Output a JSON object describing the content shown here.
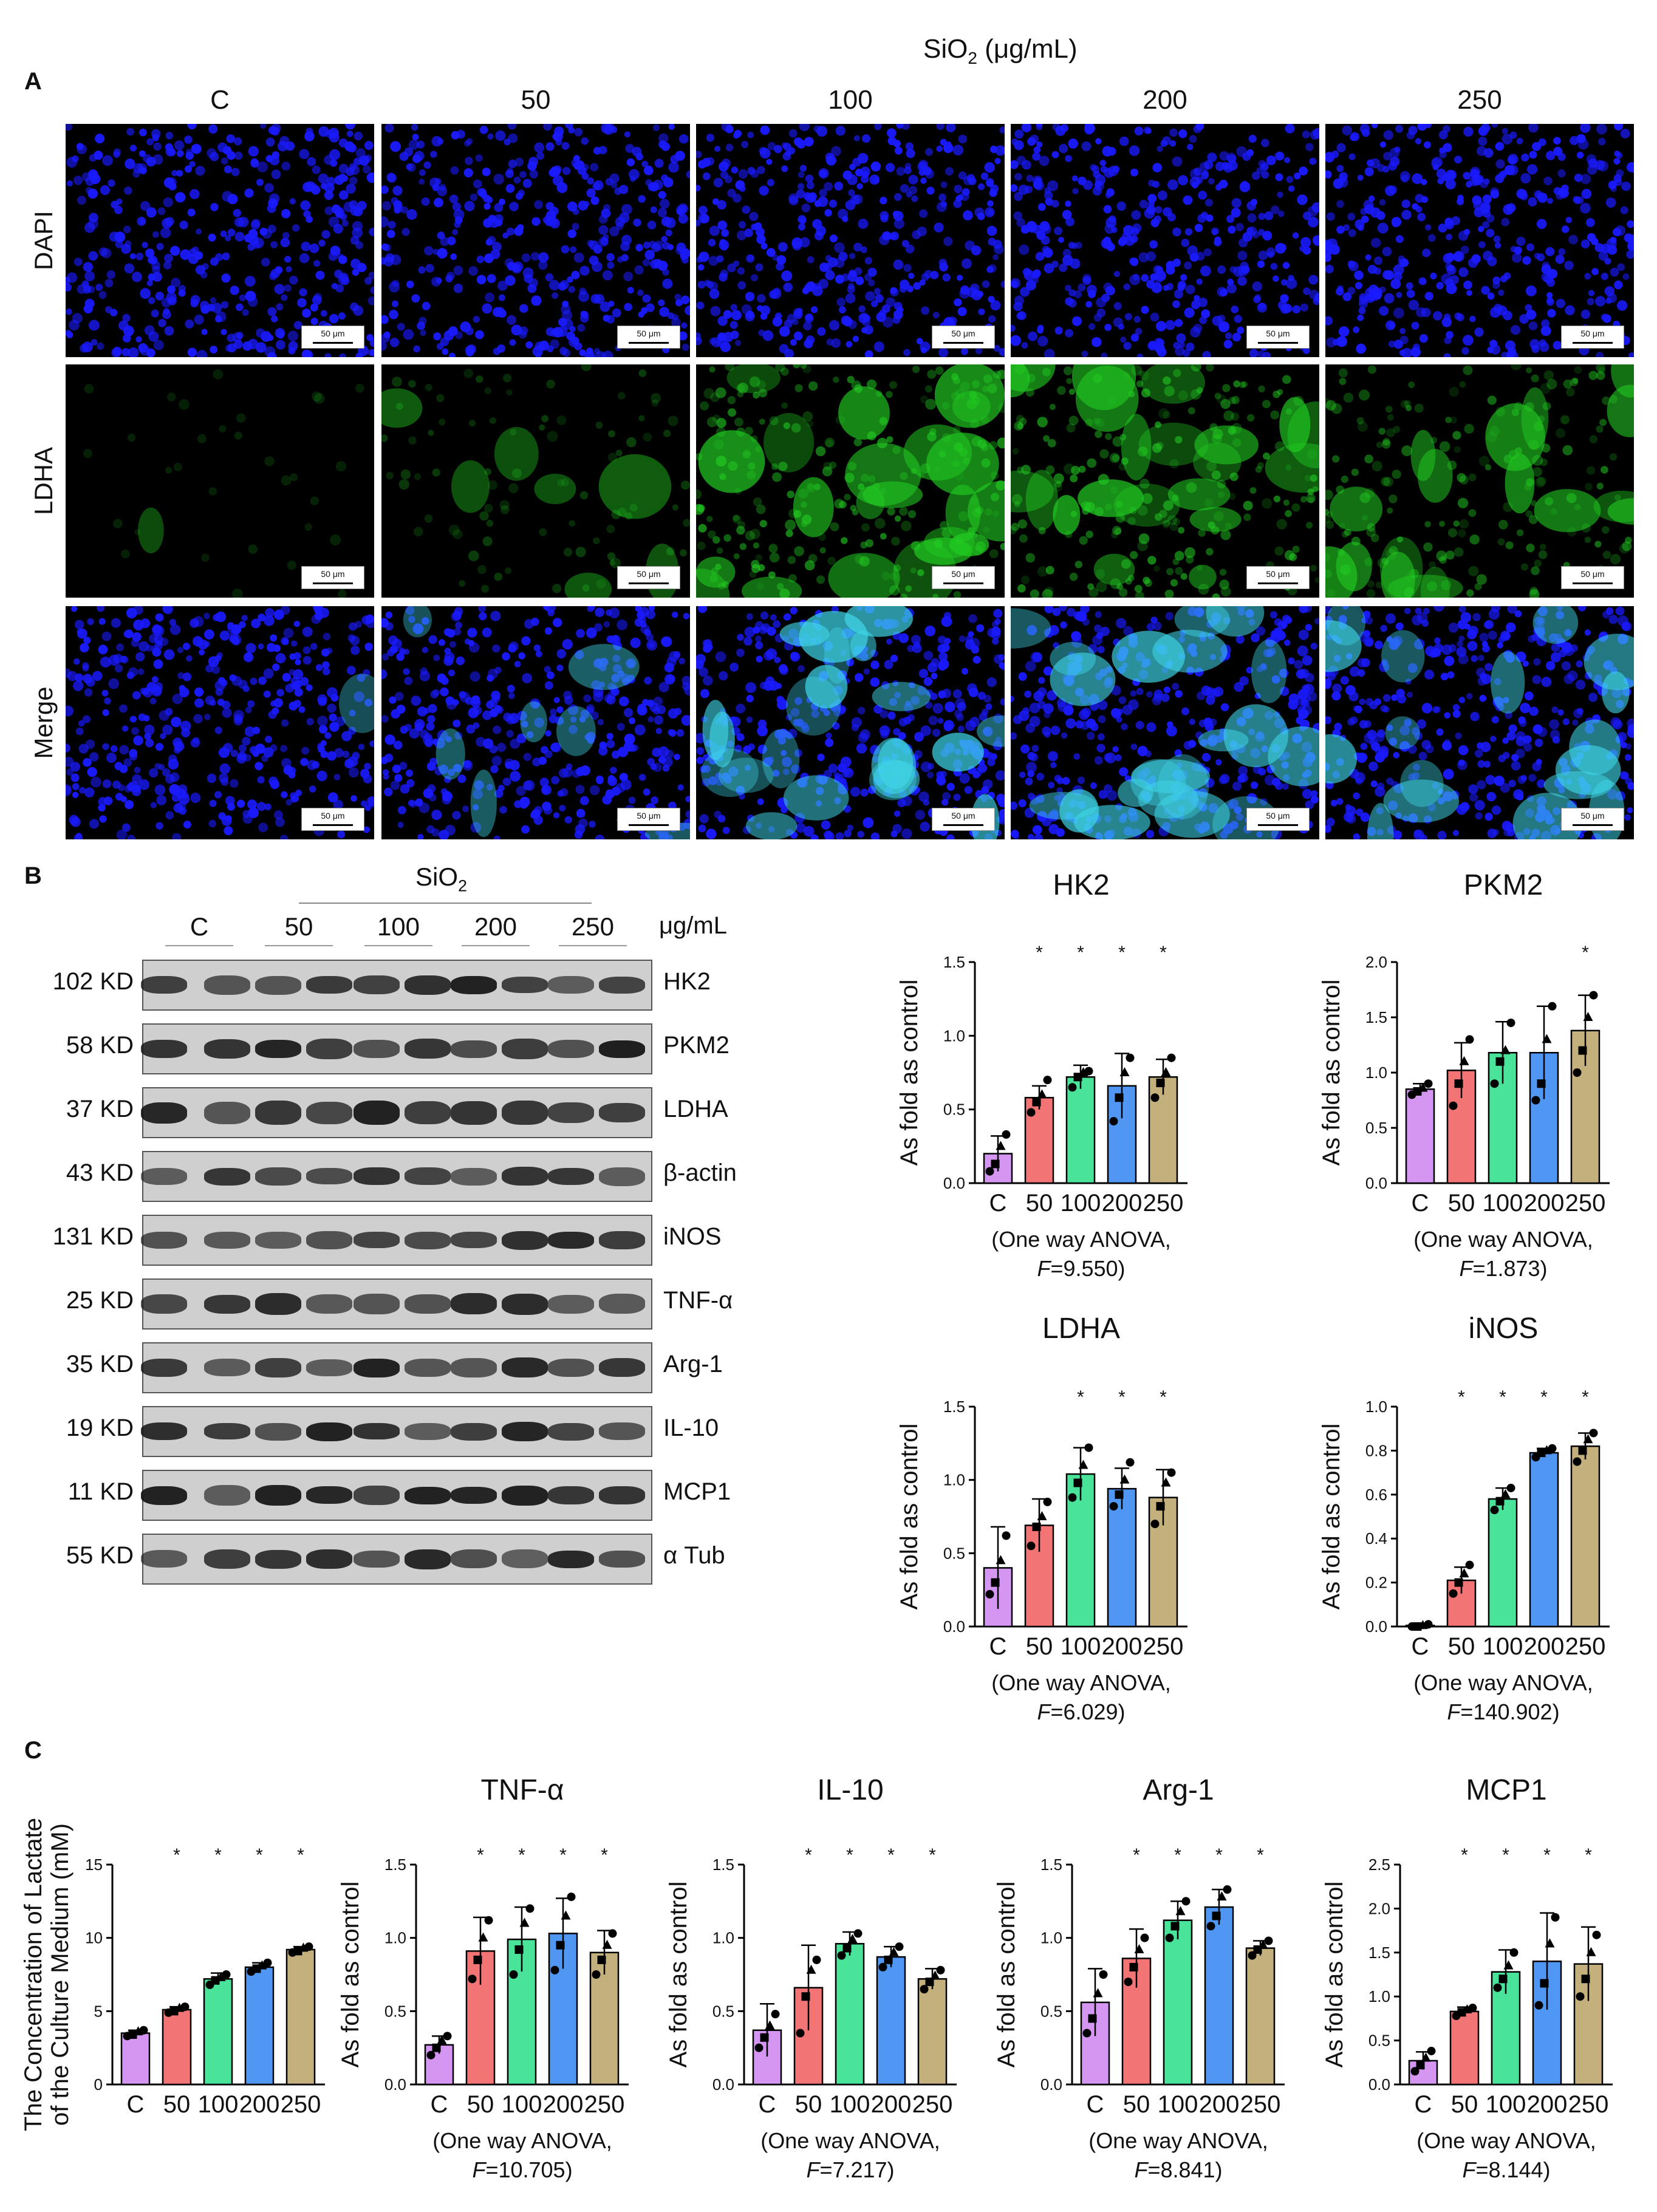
{
  "panelA": {
    "letter": "A",
    "treatment_label": "SiO2 (μg/mL)",
    "columns": [
      "C",
      "50",
      "100",
      "200",
      "250"
    ],
    "rows": [
      "DAPI",
      "LDHA",
      "Merge"
    ],
    "scale_bar": "50 μm",
    "colors": {
      "dapi": "#1a1aff",
      "ldha": "#22cc22",
      "merge_cyan": "#3fd6e8"
    },
    "ldha_intensity": [
      0.05,
      0.25,
      0.85,
      0.8,
      0.65
    ]
  },
  "panelB": {
    "letter": "B",
    "treatment_label": "SiO2",
    "groups": [
      "C",
      "50",
      "100",
      "200",
      "250"
    ],
    "unit": "μg/mL",
    "blots": [
      {
        "mw": "102 KD",
        "protein": "HK2"
      },
      {
        "mw": "58 KD",
        "protein": "PKM2"
      },
      {
        "mw": "37 KD",
        "protein": "LDHA"
      },
      {
        "mw": "43 KD",
        "protein": "β-actin"
      },
      {
        "mw": "131 KD",
        "protein": "iNOS"
      },
      {
        "mw": "25 KD",
        "protein": "TNF-α"
      },
      {
        "mw": "35 KD",
        "protein": "Arg-1"
      },
      {
        "mw": "19 KD",
        "protein": "IL-10"
      },
      {
        "mw": "11 KD",
        "protein": "MCP1"
      },
      {
        "mw": "55 KD",
        "protein": "α Tub"
      }
    ]
  },
  "panelC": {
    "letter": "C"
  },
  "chart_data": [
    {
      "id": "hk2",
      "type": "bar",
      "title": "HK2",
      "categories": [
        "C",
        "50",
        "100",
        "200",
        "250"
      ],
      "values": [
        0.2,
        0.58,
        0.72,
        0.66,
        0.72
      ],
      "errors": [
        0.12,
        0.08,
        0.08,
        0.22,
        0.12
      ],
      "points": [
        [
          0.08,
          0.13,
          0.25,
          0.33
        ],
        [
          0.48,
          0.55,
          0.6,
          0.7
        ],
        [
          0.65,
          0.72,
          0.75,
          0.76
        ],
        [
          0.42,
          0.58,
          0.75,
          0.85
        ],
        [
          0.58,
          0.68,
          0.75,
          0.85
        ]
      ],
      "significant": [
        false,
        true,
        true,
        true,
        true
      ],
      "ylabel": "As fold as control",
      "ylim": [
        0,
        1.5
      ],
      "yticks": [
        "0.0",
        "0.5",
        "1.0",
        "1.5"
      ],
      "anova_1": "(One way ANOVA,",
      "anova_2": "F=9.550)"
    },
    {
      "id": "pkm2",
      "type": "bar",
      "title": "PKM2",
      "categories": [
        "C",
        "50",
        "100",
        "200",
        "250"
      ],
      "values": [
        0.85,
        1.02,
        1.18,
        1.18,
        1.38
      ],
      "errors": [
        0.05,
        0.25,
        0.28,
        0.42,
        0.32
      ],
      "points": [
        [
          0.8,
          0.83,
          0.86,
          0.9
        ],
        [
          0.7,
          0.9,
          1.1,
          1.3
        ],
        [
          0.9,
          1.1,
          1.2,
          1.45
        ],
        [
          0.75,
          0.9,
          1.3,
          1.6
        ],
        [
          1.0,
          1.2,
          1.5,
          1.7
        ]
      ],
      "significant": [
        false,
        false,
        false,
        false,
        true
      ],
      "ylabel": "As fold as control",
      "ylim": [
        0,
        2
      ],
      "yticks": [
        "0.0",
        "0.5",
        "1.0",
        "1.5",
        "2.0"
      ],
      "anova_1": "(One way ANOVA,",
      "anova_2": "F=1.873)"
    },
    {
      "id": "ldha",
      "type": "bar",
      "title": "LDHA",
      "categories": [
        "C",
        "50",
        "100",
        "200",
        "250"
      ],
      "values": [
        0.4,
        0.69,
        1.04,
        0.94,
        0.88
      ],
      "errors": [
        0.28,
        0.18,
        0.18,
        0.14,
        0.19
      ],
      "points": [
        [
          0.22,
          0.3,
          0.45,
          0.62
        ],
        [
          0.55,
          0.68,
          0.75,
          0.85
        ],
        [
          0.88,
          0.98,
          1.1,
          1.22
        ],
        [
          0.82,
          0.9,
          1.0,
          1.12
        ],
        [
          0.7,
          0.82,
          0.98,
          1.05
        ]
      ],
      "significant": [
        false,
        false,
        true,
        true,
        true
      ],
      "ylabel": "As fold as control",
      "ylim": [
        0,
        1.5
      ],
      "yticks": [
        "0.0",
        "0.5",
        "1.0",
        "1.5"
      ],
      "anova_1": "(One way ANOVA,",
      "anova_2": "F=6.029)"
    },
    {
      "id": "inos",
      "type": "bar",
      "title": "iNOS",
      "categories": [
        "C",
        "50",
        "100",
        "200",
        "250"
      ],
      "values": [
        0.005,
        0.21,
        0.58,
        0.79,
        0.82
      ],
      "errors": [
        0.005,
        0.06,
        0.05,
        0.02,
        0.06
      ],
      "points": [
        [
          0.0,
          0.0,
          0.005,
          0.01
        ],
        [
          0.15,
          0.2,
          0.24,
          0.28
        ],
        [
          0.53,
          0.57,
          0.6,
          0.63
        ],
        [
          0.77,
          0.79,
          0.8,
          0.81
        ],
        [
          0.75,
          0.8,
          0.85,
          0.88
        ]
      ],
      "significant": [
        false,
        true,
        true,
        true,
        true
      ],
      "ylabel": "As fold as control",
      "ylim": [
        0,
        1
      ],
      "yticks": [
        "0.0",
        "0.2",
        "0.4",
        "0.6",
        "0.8",
        "1.0"
      ],
      "anova_1": "(One way ANOVA,",
      "anova_2": "F=140.902)"
    },
    {
      "id": "lactate",
      "type": "bar",
      "title": "",
      "categories": [
        "C",
        "50",
        "100",
        "200",
        "250"
      ],
      "values": [
        3.5,
        5.1,
        7.2,
        8.0,
        9.2
      ],
      "errors": [
        0.2,
        0.2,
        0.4,
        0.3,
        0.2
      ],
      "points": [
        [
          3.3,
          3.4,
          3.6,
          3.7
        ],
        [
          4.9,
          5.0,
          5.2,
          5.3
        ],
        [
          6.8,
          7.1,
          7.3,
          7.5
        ],
        [
          7.7,
          7.9,
          8.1,
          8.3
        ],
        [
          9.0,
          9.1,
          9.3,
          9.4
        ]
      ],
      "significant": [
        false,
        true,
        true,
        true,
        true
      ],
      "ylabel": "The Concentration of Lactate\nof the Culture Medium (mM)",
      "ylim": [
        0,
        15
      ],
      "yticks": [
        "0",
        "5",
        "10",
        "15"
      ],
      "anova_1": "",
      "anova_2": ""
    },
    {
      "id": "tnf",
      "type": "bar",
      "title": "TNF-α",
      "categories": [
        "C",
        "50",
        "100",
        "200",
        "250"
      ],
      "values": [
        0.27,
        0.91,
        0.99,
        1.03,
        0.9
      ],
      "errors": [
        0.06,
        0.23,
        0.22,
        0.24,
        0.15
      ],
      "points": [
        [
          0.2,
          0.25,
          0.3,
          0.33
        ],
        [
          0.72,
          0.85,
          1.0,
          1.12
        ],
        [
          0.75,
          0.92,
          1.1,
          1.2
        ],
        [
          0.78,
          0.95,
          1.15,
          1.28
        ],
        [
          0.75,
          0.85,
          0.95,
          1.03
        ]
      ],
      "significant": [
        false,
        true,
        true,
        true,
        true
      ],
      "ylabel": "As fold as control",
      "ylim": [
        0,
        1.5
      ],
      "yticks": [
        "0.0",
        "0.5",
        "1.0",
        "1.5"
      ],
      "anova_1": "(One way ANOVA,",
      "anova_2": "F=10.705)"
    },
    {
      "id": "il10",
      "type": "bar",
      "title": "IL-10",
      "categories": [
        "C",
        "50",
        "100",
        "200",
        "250"
      ],
      "values": [
        0.37,
        0.66,
        0.96,
        0.87,
        0.72
      ],
      "errors": [
        0.18,
        0.29,
        0.08,
        0.07,
        0.07
      ],
      "points": [
        [
          0.25,
          0.32,
          0.4,
          0.48
        ],
        [
          0.35,
          0.6,
          0.78,
          0.85
        ],
        [
          0.88,
          0.93,
          0.99,
          1.03
        ],
        [
          0.8,
          0.85,
          0.9,
          0.94
        ],
        [
          0.65,
          0.7,
          0.74,
          0.78
        ]
      ],
      "significant": [
        false,
        true,
        true,
        true,
        true
      ],
      "ylabel": "As fold as control",
      "ylim": [
        0,
        1.5
      ],
      "yticks": [
        "0.0",
        "0.5",
        "1.0",
        "1.5"
      ],
      "anova_1": "(One way ANOVA,",
      "anova_2": "F=7.217)"
    },
    {
      "id": "arg1",
      "type": "bar",
      "title": "Arg-1",
      "categories": [
        "C",
        "50",
        "100",
        "200",
        "250"
      ],
      "values": [
        0.56,
        0.86,
        1.12,
        1.21,
        0.93
      ],
      "errors": [
        0.23,
        0.2,
        0.13,
        0.12,
        0.05
      ],
      "points": [
        [
          0.35,
          0.45,
          0.62,
          0.75
        ],
        [
          0.7,
          0.8,
          0.92,
          1.0
        ],
        [
          1.0,
          1.08,
          1.18,
          1.25
        ],
        [
          1.08,
          1.15,
          1.28,
          1.33
        ],
        [
          0.88,
          0.92,
          0.95,
          0.98
        ]
      ],
      "significant": [
        false,
        true,
        true,
        true,
        true
      ],
      "ylabel": "As fold as control",
      "ylim": [
        0,
        1.5
      ],
      "yticks": [
        "0.0",
        "0.5",
        "1.0",
        "1.5"
      ],
      "anova_1": "(One way ANOVA,",
      "anova_2": "F=8.841)"
    },
    {
      "id": "mcp1",
      "type": "bar",
      "title": "MCP1",
      "categories": [
        "C",
        "50",
        "100",
        "200",
        "250"
      ],
      "values": [
        0.27,
        0.83,
        1.28,
        1.4,
        1.37
      ],
      "errors": [
        0.1,
        0.05,
        0.25,
        0.55,
        0.42
      ],
      "points": [
        [
          0.15,
          0.22,
          0.3,
          0.38
        ],
        [
          0.78,
          0.82,
          0.85,
          0.87
        ],
        [
          1.1,
          1.2,
          1.35,
          1.5
        ],
        [
          0.9,
          1.15,
          1.6,
          1.9
        ],
        [
          1.0,
          1.2,
          1.5,
          1.7
        ]
      ],
      "significant": [
        false,
        true,
        true,
        true,
        true
      ],
      "ylabel": "As fold as control",
      "ylim": [
        0,
        2.5
      ],
      "yticks": [
        "0.0",
        "0.5",
        "1.0",
        "1.5",
        "2.0",
        "2.5"
      ],
      "anova_1": "(One way ANOVA,",
      "anova_2": "F=8.144)"
    }
  ],
  "bar_colors": [
    "#d596f2",
    "#f27474",
    "#49e39a",
    "#4f97f2",
    "#c4b07c"
  ],
  "significance_mark": "*"
}
